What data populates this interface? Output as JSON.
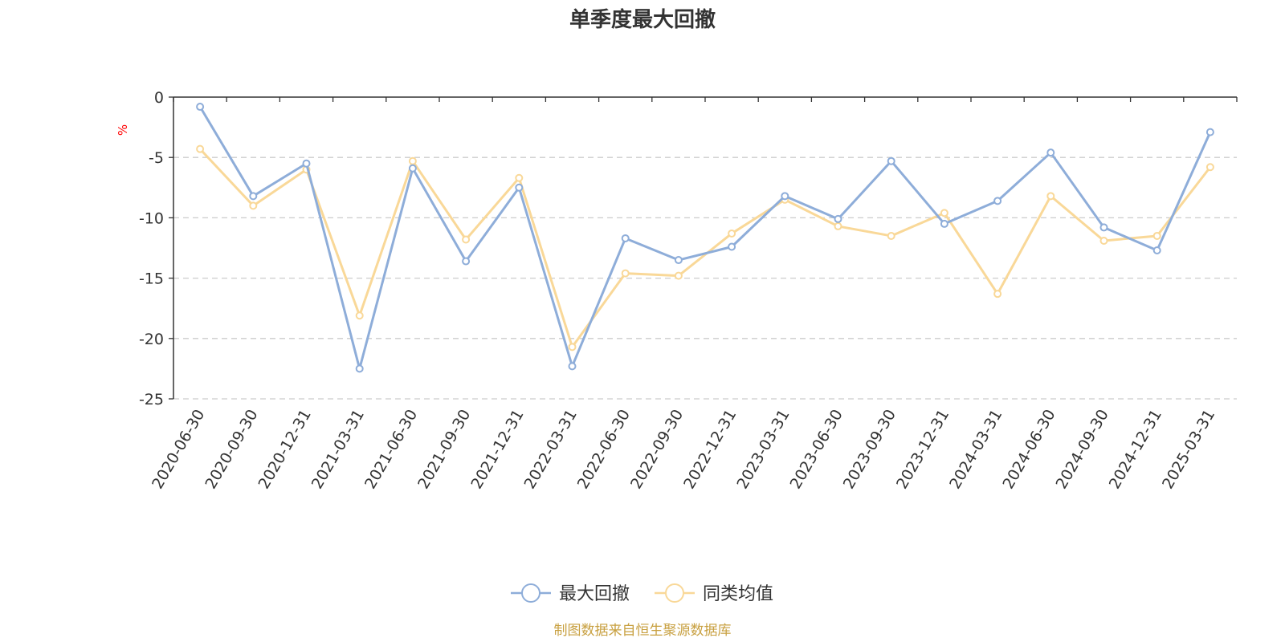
{
  "chart_data": {
    "type": "line",
    "title": "单季度最大回撤",
    "ylabel": "%",
    "ylim": [
      -25,
      0
    ],
    "yticks": [
      0,
      -5,
      -10,
      -15,
      -20,
      -25
    ],
    "grid": true,
    "legend_position": "bottom-center",
    "categories": [
      "2020-06-30",
      "2020-09-30",
      "2020-12-31",
      "2021-03-31",
      "2021-06-30",
      "2021-09-30",
      "2021-12-31",
      "2022-03-31",
      "2022-06-30",
      "2022-09-30",
      "2022-12-31",
      "2023-03-31",
      "2023-06-30",
      "2023-09-30",
      "2023-12-31",
      "2024-03-31",
      "2024-06-30",
      "2024-09-30",
      "2024-12-31",
      "2025-03-31"
    ],
    "series": [
      {
        "name": "最大回撤",
        "color": "#8eadd9",
        "values": [
          -0.8,
          -8.2,
          -5.5,
          -22.5,
          -5.9,
          -13.6,
          -7.5,
          -22.3,
          -11.7,
          -13.5,
          -12.4,
          -8.2,
          -10.1,
          -5.3,
          -10.5,
          -8.6,
          -4.6,
          -10.8,
          -12.7,
          -2.9
        ]
      },
      {
        "name": "同类均值",
        "color": "#f9d898",
        "values": [
          -4.3,
          -9.0,
          -6.0,
          -18.1,
          -5.3,
          -11.8,
          -6.7,
          -20.7,
          -14.6,
          -14.8,
          -11.3,
          -8.5,
          -10.7,
          -11.5,
          -9.6,
          -16.3,
          -8.2,
          -11.9,
          -11.5,
          -5.8
        ]
      }
    ],
    "source": "制图数据来自恒生聚源数据库"
  }
}
